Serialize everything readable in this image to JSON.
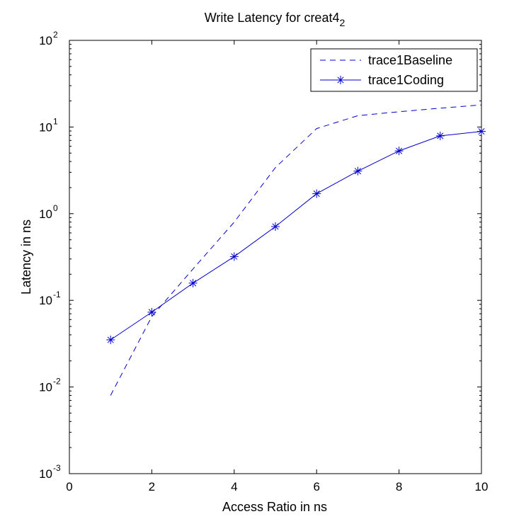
{
  "chart_data": {
    "type": "line",
    "title": "Write Latency for creat4",
    "title_subscript": "2",
    "xlabel": "Access Ratio in ns",
    "ylabel": "Latency in ns",
    "xlim": [
      0,
      10
    ],
    "ylim": [
      0.001,
      100
    ],
    "yscale": "log",
    "grid": false,
    "legend_position": "top-right",
    "x_ticks": [
      "0",
      "2",
      "4",
      "6",
      "8",
      "10"
    ],
    "y_ticks": [
      {
        "base": "10",
        "exp": "-3"
      },
      {
        "base": "10",
        "exp": "-2"
      },
      {
        "base": "10",
        "exp": "-1"
      },
      {
        "base": "10",
        "exp": "0"
      },
      {
        "base": "10",
        "exp": "1"
      },
      {
        "base": "10",
        "exp": "2"
      }
    ],
    "series": [
      {
        "name": "trace1Baseline",
        "style": "dashed",
        "marker": "none",
        "color": "#0000CC",
        "x": [
          1,
          2,
          3,
          4,
          5,
          6,
          7,
          8,
          9,
          10
        ],
        "y": [
          0.008,
          0.065,
          0.23,
          0.8,
          3.4,
          9.6,
          13.5,
          15,
          16.5,
          18
        ]
      },
      {
        "name": "trace1Coding",
        "style": "solid",
        "marker": "asterisk",
        "color": "#0000CC",
        "x": [
          1,
          2,
          3,
          4,
          5,
          6,
          7,
          8,
          9,
          10
        ],
        "y": [
          0.035,
          0.073,
          0.158,
          0.32,
          0.71,
          1.7,
          3.1,
          5.3,
          7.9,
          8.9
        ]
      }
    ]
  }
}
